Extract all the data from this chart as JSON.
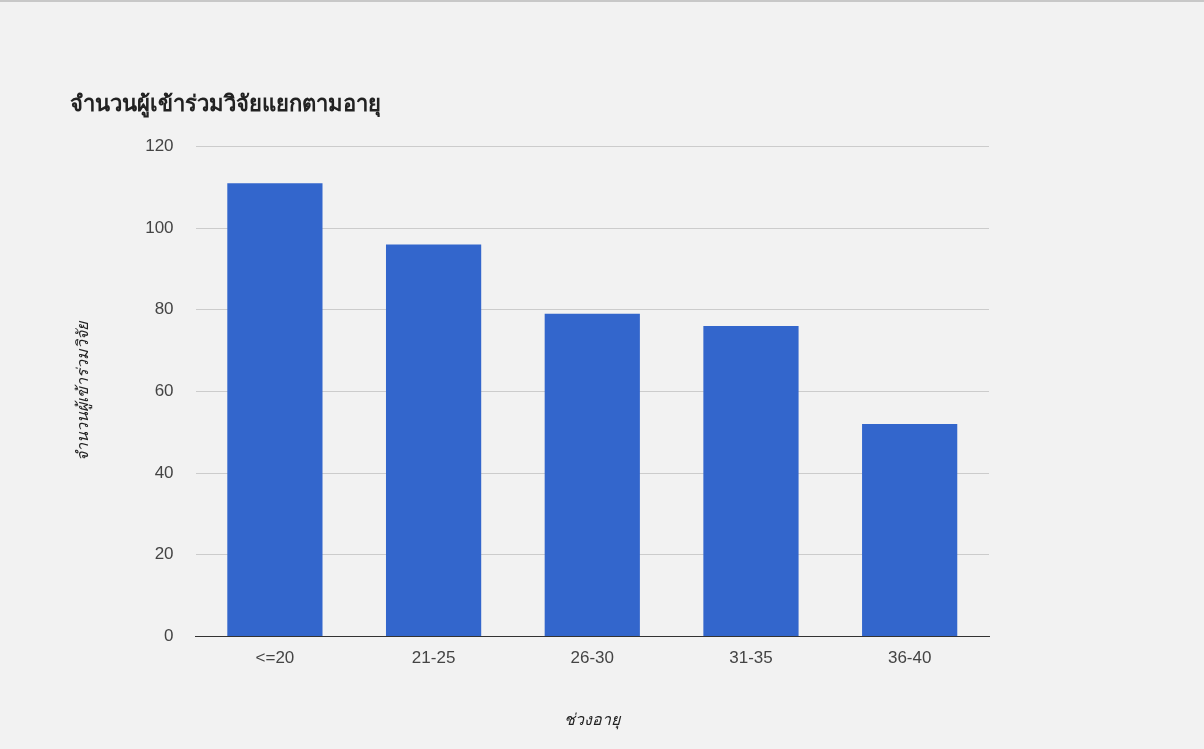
{
  "chart_data": {
    "type": "bar",
    "title": "จำนวนผู้เข้าร่วมวิจัยแยกตามอายุ",
    "xlabel": "ช่วงอายุ",
    "ylabel": "จำนวนผู้เข้าร่วมวิจัย",
    "categories": [
      "<=20",
      "21-25",
      "26-30",
      "31-35",
      "36-40"
    ],
    "values": [
      111,
      96,
      79,
      76,
      52
    ],
    "color": "#3366cc",
    "ylim": [
      0,
      120
    ],
    "yticks": [
      0,
      20,
      40,
      60,
      80,
      100,
      120
    ],
    "grid": "y",
    "legend": false
  }
}
